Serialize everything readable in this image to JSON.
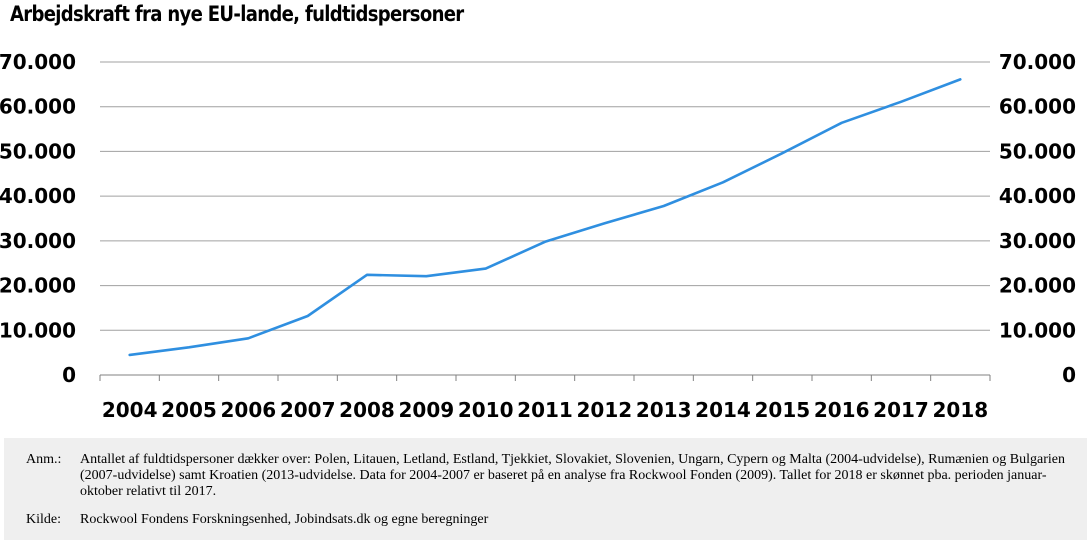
{
  "chart_data": {
    "type": "line",
    "title": "Arbejdskraft fra nye EU-lande, fuldtidspersoner",
    "xlabel": "",
    "ylabel": "",
    "categories": [
      "2004",
      "2005",
      "2006",
      "2007",
      "2008",
      "2009",
      "2010",
      "2011",
      "2012",
      "2013",
      "2014",
      "2015",
      "2016",
      "2017",
      "2018"
    ],
    "series": [
      {
        "values": [
          4500,
          6200,
          8200,
          13200,
          22400,
          22100,
          23800,
          29800,
          33900,
          37800,
          43100,
          49600,
          56400,
          61100,
          66100
        ]
      }
    ],
    "ylim": [
      0,
      70000
    ],
    "yticks": [
      0,
      10000,
      20000,
      30000,
      40000,
      50000,
      60000,
      70000
    ],
    "ytick_labels": [
      "0",
      "10.000",
      "20.000",
      "30.000",
      "40.000",
      "50.000",
      "60.000",
      "70.000"
    ],
    "grid": true,
    "dual_y_axis": true,
    "line_color": "#2f8fe0",
    "grid_color": "#a0a0a0"
  },
  "notes": {
    "anm_label": "Anm.:",
    "anm_text": "Antallet af fuldtidspersoner dækker over: Polen, Litauen, Letland, Estland, Tjekkiet, Slovakiet, Slovenien, Ungarn, Cypern og Malta (2004-udvidelse), Rumænien og Bulgarien (2007-udvidelse) samt Kroatien (2013-udvidelse. Data for 2004-2007 er baseret på en analyse fra Rockwool Fonden (2009). Tallet for 2018 er skønnet pba. perioden januar-oktober relativt til 2017.",
    "kilde_label": "Kilde:",
    "kilde_text": "Rockwool Fondens Forskningsenhed, Jobindsats.dk og egne beregninger"
  }
}
